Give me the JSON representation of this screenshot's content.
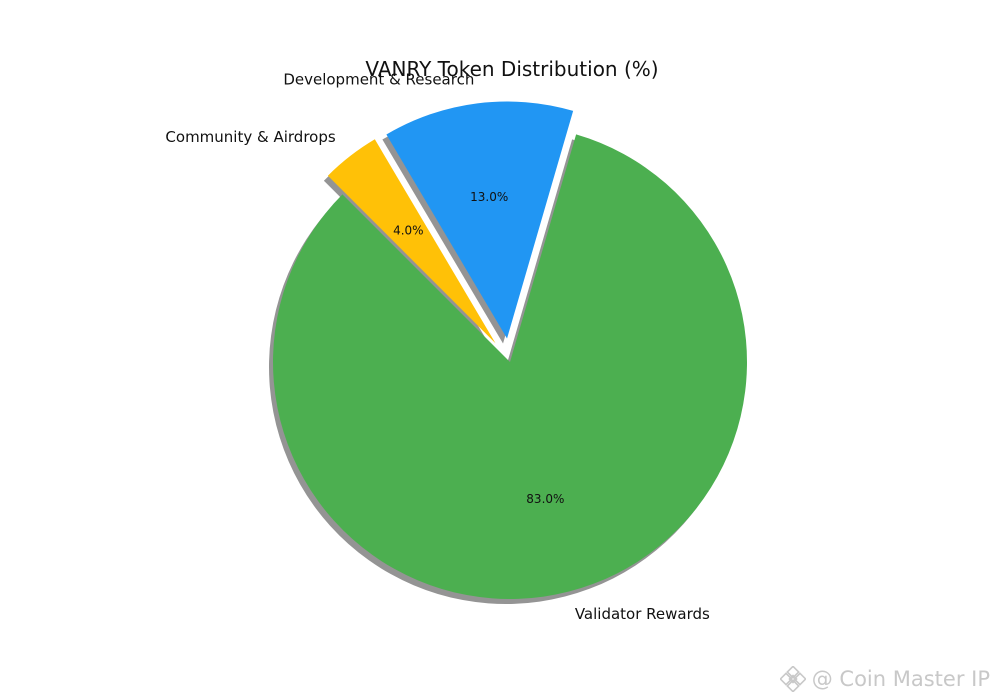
{
  "chart_data": {
    "type": "pie",
    "title": "VANRY Token Distribution (%)",
    "start_angle_deg": 135,
    "direction": "counterclockwise",
    "shadow": true,
    "slices": [
      {
        "label": "Validator Rewards",
        "value": 83.0,
        "pct_label": "83.0%",
        "color": "#4caf50",
        "exploded": false
      },
      {
        "label": "Development & Research",
        "value": 13.0,
        "pct_label": "13.0%",
        "color": "#2196f3",
        "exploded": true
      },
      {
        "label": "Community & Airdrops",
        "value": 4.0,
        "pct_label": "4.0%",
        "color": "#ffc107",
        "exploded": true
      }
    ]
  },
  "watermark": {
    "text": "@ Coin Master IP",
    "icon": "binance-logo-icon"
  }
}
